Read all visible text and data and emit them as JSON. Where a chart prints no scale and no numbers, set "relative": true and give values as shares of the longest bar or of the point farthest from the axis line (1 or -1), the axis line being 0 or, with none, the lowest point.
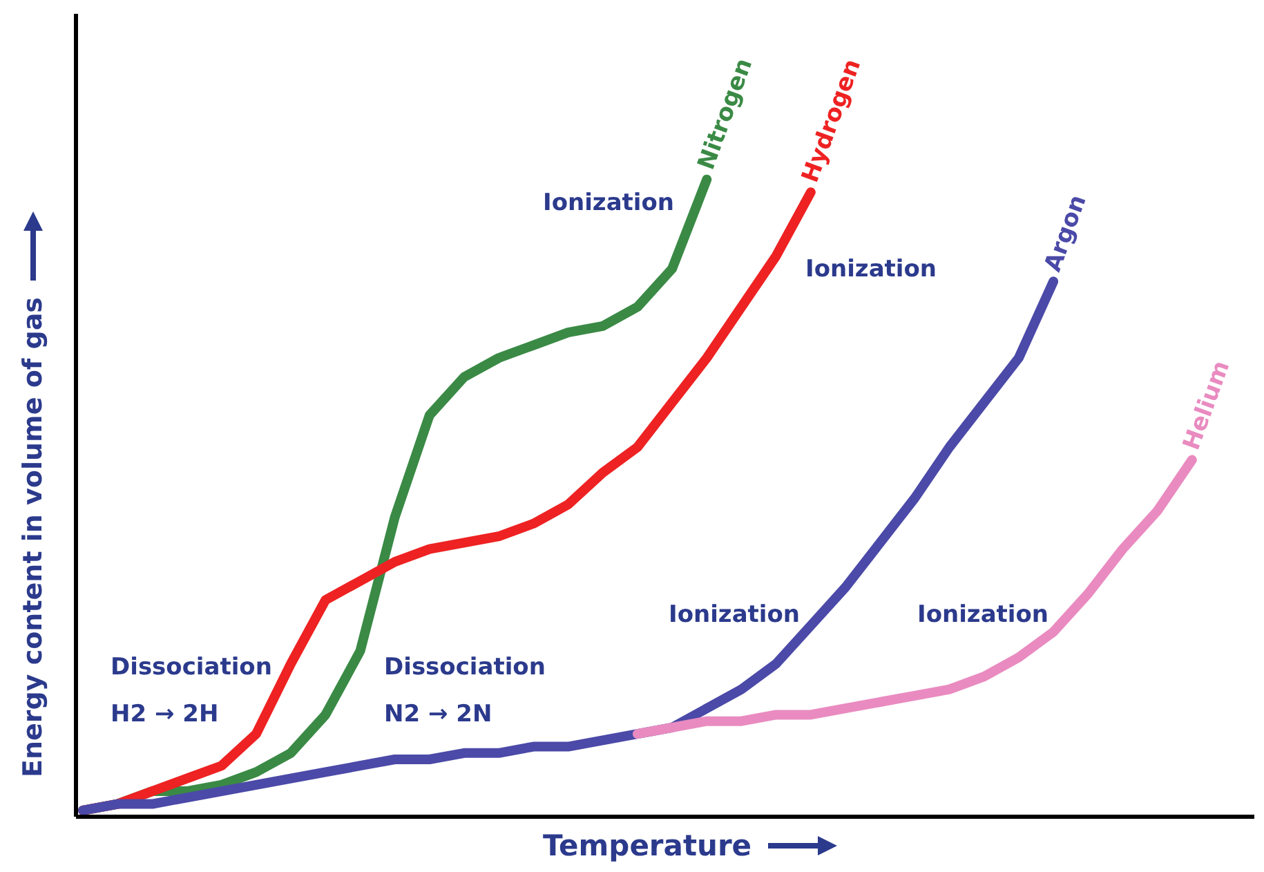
{
  "chart_data": {
    "type": "line",
    "relative": true,
    "xlabel": "Temperature",
    "ylabel": "Energy content in volume of gas",
    "categories": [
      null,
      null,
      null,
      null,
      null,
      null,
      null,
      null,
      null,
      null,
      null,
      null,
      null,
      null,
      null,
      null,
      null,
      null,
      null,
      null,
      null,
      null,
      null,
      null,
      null,
      null,
      null,
      null,
      null,
      null,
      null,
      null,
      null,
      null
    ],
    "series": [
      {
        "name": "Nitrogen",
        "color": "#3a8a45",
        "values": [
          0.01,
          0.02,
          0.04,
          0.04,
          0.05,
          0.07,
          0.1,
          0.16,
          0.26,
          0.47,
          0.63,
          0.69,
          0.72,
          0.74,
          0.76,
          0.77,
          0.8,
          0.86,
          1,
          null,
          null,
          null,
          null,
          null,
          null,
          null,
          null,
          null,
          null,
          null,
          null,
          null,
          null,
          null
        ]
      },
      {
        "name": "Hydrogen",
        "color": "#ee2222",
        "values": [
          0.01,
          0.02,
          0.04,
          0.06,
          0.08,
          0.13,
          0.24,
          0.34,
          0.37,
          0.4,
          0.42,
          0.43,
          0.44,
          0.46,
          0.49,
          0.54,
          0.58,
          0.65,
          0.72,
          0.8,
          0.88,
          0.98,
          null,
          null,
          null,
          null,
          null,
          null,
          null,
          null,
          null,
          null,
          null,
          null
        ]
      },
      {
        "name": "Argon",
        "color": "#4b4aa8",
        "values": [
          0.01,
          0.02,
          0.02,
          0.03,
          0.04,
          0.05,
          0.06,
          0.07,
          0.08,
          0.09,
          0.09,
          0.1,
          0.1,
          0.11,
          0.11,
          0.12,
          0.13,
          0.14,
          0.17,
          0.2,
          0.24,
          0.3,
          0.36,
          0.43,
          0.5,
          0.58,
          0.65,
          0.72,
          0.84,
          null,
          null,
          null,
          null,
          null
        ]
      },
      {
        "name": "Helium",
        "color": "#e98bc0",
        "values": [
          null,
          null,
          null,
          null,
          null,
          null,
          null,
          null,
          null,
          null,
          null,
          null,
          null,
          null,
          null,
          null,
          0.13,
          0.14,
          0.15,
          0.15,
          0.16,
          0.16,
          0.17,
          0.18,
          0.19,
          0.2,
          0.22,
          0.25,
          0.29,
          0.35,
          0.42,
          0.48,
          0.56,
          null
        ]
      }
    ],
    "annotations": [
      "Ionization",
      "Ionization",
      "Ionization",
      "Ionization",
      "Dissociation\nH2 → 2H",
      "Dissociation\nN2 → 2N"
    ],
    "grid": false,
    "legend": false,
    "marker": "none",
    "line_style": "solid"
  }
}
